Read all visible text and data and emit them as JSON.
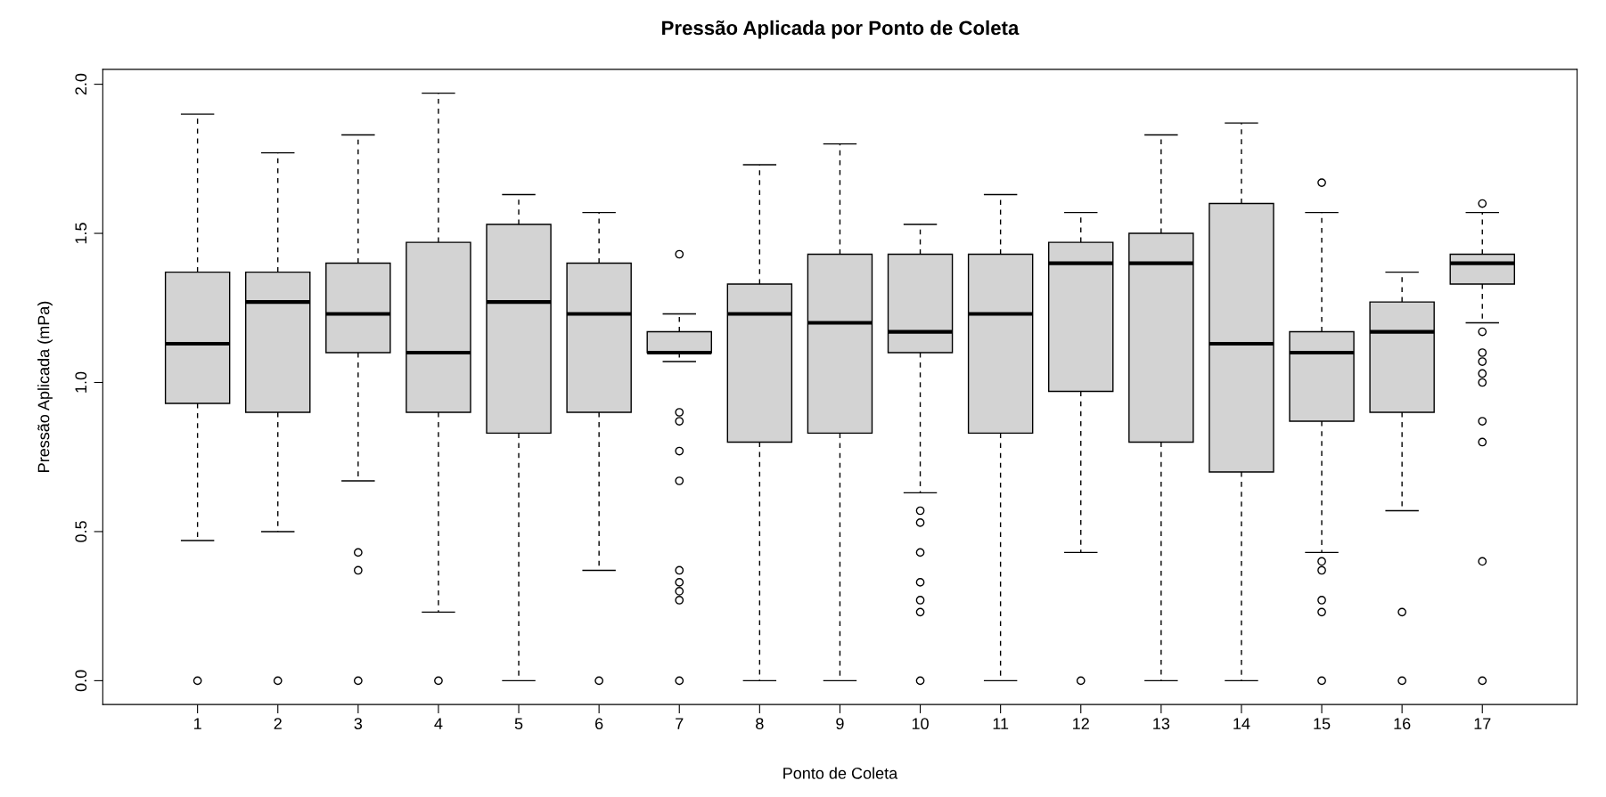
{
  "chart_data": {
    "type": "box",
    "title": "Pressão Aplicada por Ponto de Coleta",
    "xlabel": "Ponto de Coleta",
    "ylabel": "Pressão Aplicada (mPa)",
    "categories": [
      "1",
      "2",
      "3",
      "4",
      "5",
      "6",
      "7",
      "8",
      "9",
      "10",
      "11",
      "12",
      "13",
      "14",
      "15",
      "16",
      "17"
    ],
    "color": "#d3d3d3",
    "boxes": [
      {
        "low": 0.47,
        "q1": 0.93,
        "median": 1.13,
        "q3": 1.37,
        "high": 1.9,
        "outliers": [
          0
        ]
      },
      {
        "low": 0.5,
        "q1": 0.9,
        "median": 1.27,
        "q3": 1.37,
        "high": 1.77,
        "outliers": [
          0
        ]
      },
      {
        "low": 0.67,
        "q1": 1.1,
        "median": 1.23,
        "q3": 1.4,
        "high": 1.83,
        "outliers": [
          0.43,
          0.37,
          0
        ]
      },
      {
        "low": 0.23,
        "q1": 0.9,
        "median": 1.1,
        "q3": 1.47,
        "high": 1.97,
        "outliers": [
          0
        ]
      },
      {
        "low": 0,
        "q1": 0.83,
        "median": 1.27,
        "q3": 1.53,
        "high": 1.63
      },
      {
        "low": 0.37,
        "q1": 0.9,
        "median": 1.23,
        "q3": 1.4,
        "high": 1.57,
        "outliers": [
          0
        ]
      },
      {
        "low": 1.07,
        "q1": 1.1,
        "median": 1.1,
        "q3": 1.17,
        "high": 1.23,
        "outliers": [
          1.43,
          0.9,
          0.87,
          0.77,
          0.67,
          0.37,
          0.33,
          0.3,
          0.27,
          0
        ]
      },
      {
        "low": 0,
        "q1": 0.8,
        "median": 1.23,
        "q3": 1.33,
        "high": 1.73
      },
      {
        "low": 0,
        "q1": 0.83,
        "median": 1.2,
        "q3": 1.43,
        "high": 1.8
      },
      {
        "low": 0.63,
        "q1": 1.1,
        "median": 1.17,
        "q3": 1.43,
        "high": 1.53,
        "outliers": [
          0.57,
          0.53,
          0.43,
          0.33,
          0.27,
          0.23,
          0
        ]
      },
      {
        "low": 0,
        "q1": 0.83,
        "median": 1.23,
        "q3": 1.43,
        "high": 1.63
      },
      {
        "low": 0.43,
        "q1": 0.97,
        "median": 1.4,
        "q3": 1.47,
        "high": 1.57,
        "outliers": [
          0
        ]
      },
      {
        "low": 0,
        "q1": 0.8,
        "median": 1.4,
        "q3": 1.5,
        "high": 1.83
      },
      {
        "low": 0,
        "q1": 0.7,
        "median": 1.13,
        "q3": 1.6,
        "high": 1.87
      },
      {
        "low": 0.43,
        "q1": 0.87,
        "median": 1.1,
        "q3": 1.17,
        "high": 1.57,
        "outliers": [
          1.67,
          0.4,
          0.37,
          0.27,
          0.23,
          0
        ]
      },
      {
        "low": 0.57,
        "q1": 0.9,
        "median": 1.17,
        "q3": 1.27,
        "high": 1.37,
        "outliers": [
          0.23,
          0
        ]
      },
      {
        "low": 1.2,
        "q1": 1.33,
        "median": 1.4,
        "q3": 1.43,
        "high": 1.57,
        "outliers": [
          1.6,
          1.17,
          1.1,
          1.07,
          1.03,
          1.0,
          0.87,
          0.8,
          0.4,
          0
        ]
      }
    ],
    "ylim": [
      -0.08,
      2.05
    ],
    "yticks": [
      {
        "value": 0,
        "label": "0.0"
      },
      {
        "value": 0.5,
        "label": "0.5"
      },
      {
        "value": 1,
        "label": "1.0"
      },
      {
        "value": 1.5,
        "label": "1.5"
      },
      {
        "value": 2,
        "label": "2.0"
      }
    ],
    "grid": false
  }
}
